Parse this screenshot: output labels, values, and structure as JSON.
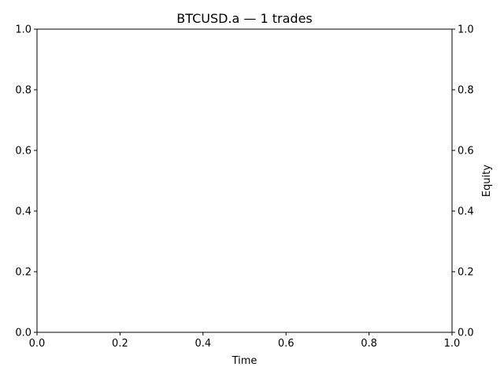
{
  "chart_data": {
    "type": "line",
    "title": "BTCUSD.a — 1 trades",
    "xlabel": "Time",
    "ylabel": "",
    "y2label": "Equity",
    "xlim": [
      0.0,
      1.0
    ],
    "ylim": [
      0.0,
      1.0
    ],
    "y2lim": [
      0.0,
      1.0
    ],
    "xticks": [
      "0.0",
      "0.2",
      "0.4",
      "0.6",
      "0.8",
      "1.0"
    ],
    "yticks": [
      "0.0",
      "0.2",
      "0.4",
      "0.6",
      "0.8",
      "1.0"
    ],
    "y2ticks": [
      "0.0",
      "0.2",
      "0.4",
      "0.6",
      "0.8",
      "1.0"
    ],
    "series": [],
    "grid": false,
    "legend": "none"
  }
}
